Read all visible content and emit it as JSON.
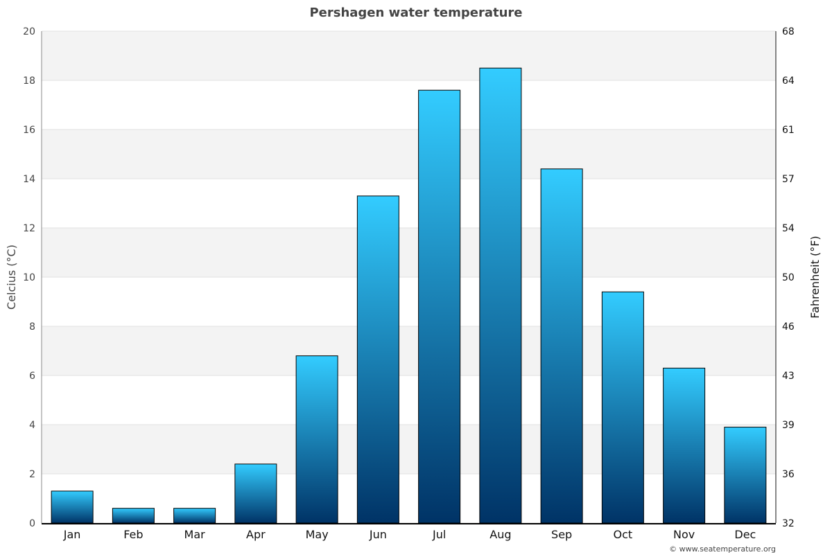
{
  "chart_data": {
    "type": "bar",
    "title": "Pershagen water temperature",
    "ylabel": "Celcius (°C)",
    "y2label": "Fahrenheit (°F)",
    "categories": [
      "Jan",
      "Feb",
      "Mar",
      "Apr",
      "May",
      "Jun",
      "Jul",
      "Aug",
      "Sep",
      "Oct",
      "Nov",
      "Dec"
    ],
    "values": [
      1.3,
      0.6,
      0.6,
      2.4,
      6.8,
      13.3,
      17.6,
      18.5,
      14.4,
      9.4,
      6.3,
      3.9
    ],
    "ylim": [
      0,
      20
    ],
    "yticks": [
      0,
      2,
      4,
      6,
      8,
      10,
      12,
      14,
      16,
      18,
      20
    ],
    "y2ticks": [
      "32",
      "36",
      "39",
      "43",
      "46",
      "50",
      "54",
      "57",
      "61",
      "64",
      "68"
    ],
    "grid": true,
    "bar_gradient": {
      "top": "#33ccff",
      "bottom": "#003366"
    },
    "band_color": "#f3f3f3"
  },
  "credit": "© www.seatemperature.org"
}
